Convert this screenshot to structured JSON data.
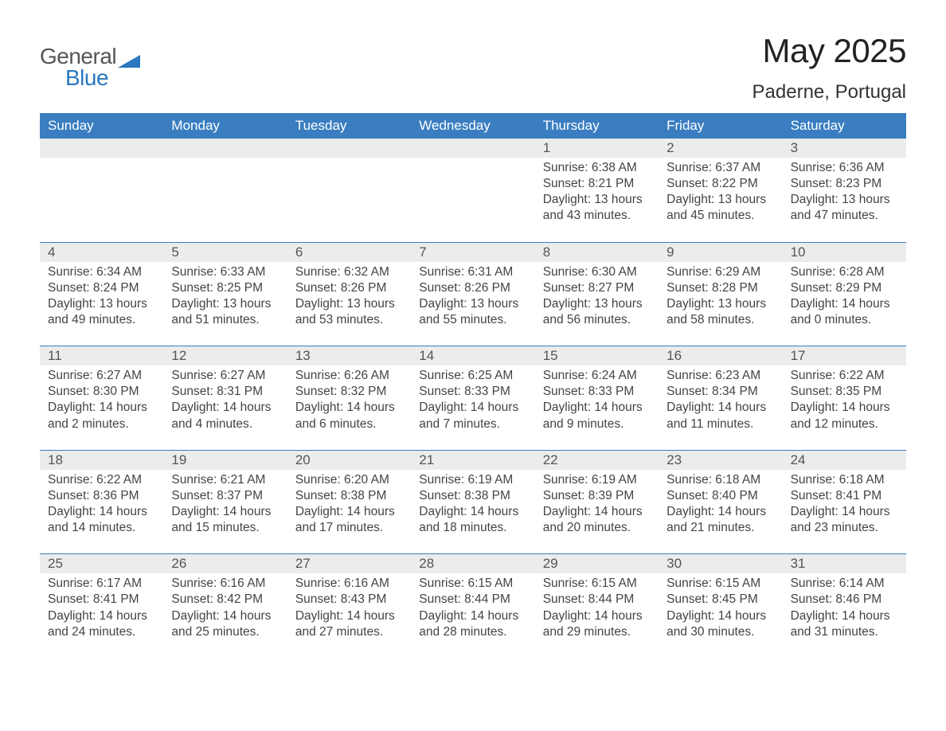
{
  "logo": {
    "general": "General",
    "blue": "Blue",
    "accent_color": "#2b77c0",
    "text_color": "#555555"
  },
  "title": "May 2025",
  "location": "Paderne, Portugal",
  "header_bg": "#3a7ec1",
  "header_fg": "#ffffff",
  "strip_bg": "#ececec",
  "border_color": "#3a7ec1",
  "text_color": "#444444",
  "columns": [
    "Sunday",
    "Monday",
    "Tuesday",
    "Wednesday",
    "Thursday",
    "Friday",
    "Saturday"
  ],
  "weeks": [
    [
      {
        "day": "",
        "lines": []
      },
      {
        "day": "",
        "lines": []
      },
      {
        "day": "",
        "lines": []
      },
      {
        "day": "",
        "lines": []
      },
      {
        "day": "1",
        "lines": [
          "Sunrise: 6:38 AM",
          "Sunset: 8:21 PM",
          "Daylight: 13 hours and 43 minutes."
        ]
      },
      {
        "day": "2",
        "lines": [
          "Sunrise: 6:37 AM",
          "Sunset: 8:22 PM",
          "Daylight: 13 hours and 45 minutes."
        ]
      },
      {
        "day": "3",
        "lines": [
          "Sunrise: 6:36 AM",
          "Sunset: 8:23 PM",
          "Daylight: 13 hours and 47 minutes."
        ]
      }
    ],
    [
      {
        "day": "4",
        "lines": [
          "Sunrise: 6:34 AM",
          "Sunset: 8:24 PM",
          "Daylight: 13 hours and 49 minutes."
        ]
      },
      {
        "day": "5",
        "lines": [
          "Sunrise: 6:33 AM",
          "Sunset: 8:25 PM",
          "Daylight: 13 hours and 51 minutes."
        ]
      },
      {
        "day": "6",
        "lines": [
          "Sunrise: 6:32 AM",
          "Sunset: 8:26 PM",
          "Daylight: 13 hours and 53 minutes."
        ]
      },
      {
        "day": "7",
        "lines": [
          "Sunrise: 6:31 AM",
          "Sunset: 8:26 PM",
          "Daylight: 13 hours and 55 minutes."
        ]
      },
      {
        "day": "8",
        "lines": [
          "Sunrise: 6:30 AM",
          "Sunset: 8:27 PM",
          "Daylight: 13 hours and 56 minutes."
        ]
      },
      {
        "day": "9",
        "lines": [
          "Sunrise: 6:29 AM",
          "Sunset: 8:28 PM",
          "Daylight: 13 hours and 58 minutes."
        ]
      },
      {
        "day": "10",
        "lines": [
          "Sunrise: 6:28 AM",
          "Sunset: 8:29 PM",
          "Daylight: 14 hours and 0 minutes."
        ]
      }
    ],
    [
      {
        "day": "11",
        "lines": [
          "Sunrise: 6:27 AM",
          "Sunset: 8:30 PM",
          "Daylight: 14 hours and 2 minutes."
        ]
      },
      {
        "day": "12",
        "lines": [
          "Sunrise: 6:27 AM",
          "Sunset: 8:31 PM",
          "Daylight: 14 hours and 4 minutes."
        ]
      },
      {
        "day": "13",
        "lines": [
          "Sunrise: 6:26 AM",
          "Sunset: 8:32 PM",
          "Daylight: 14 hours and 6 minutes."
        ]
      },
      {
        "day": "14",
        "lines": [
          "Sunrise: 6:25 AM",
          "Sunset: 8:33 PM",
          "Daylight: 14 hours and 7 minutes."
        ]
      },
      {
        "day": "15",
        "lines": [
          "Sunrise: 6:24 AM",
          "Sunset: 8:33 PM",
          "Daylight: 14 hours and 9 minutes."
        ]
      },
      {
        "day": "16",
        "lines": [
          "Sunrise: 6:23 AM",
          "Sunset: 8:34 PM",
          "Daylight: 14 hours and 11 minutes."
        ]
      },
      {
        "day": "17",
        "lines": [
          "Sunrise: 6:22 AM",
          "Sunset: 8:35 PM",
          "Daylight: 14 hours and 12 minutes."
        ]
      }
    ],
    [
      {
        "day": "18",
        "lines": [
          "Sunrise: 6:22 AM",
          "Sunset: 8:36 PM",
          "Daylight: 14 hours and 14 minutes."
        ]
      },
      {
        "day": "19",
        "lines": [
          "Sunrise: 6:21 AM",
          "Sunset: 8:37 PM",
          "Daylight: 14 hours and 15 minutes."
        ]
      },
      {
        "day": "20",
        "lines": [
          "Sunrise: 6:20 AM",
          "Sunset: 8:38 PM",
          "Daylight: 14 hours and 17 minutes."
        ]
      },
      {
        "day": "21",
        "lines": [
          "Sunrise: 6:19 AM",
          "Sunset: 8:38 PM",
          "Daylight: 14 hours and 18 minutes."
        ]
      },
      {
        "day": "22",
        "lines": [
          "Sunrise: 6:19 AM",
          "Sunset: 8:39 PM",
          "Daylight: 14 hours and 20 minutes."
        ]
      },
      {
        "day": "23",
        "lines": [
          "Sunrise: 6:18 AM",
          "Sunset: 8:40 PM",
          "Daylight: 14 hours and 21 minutes."
        ]
      },
      {
        "day": "24",
        "lines": [
          "Sunrise: 6:18 AM",
          "Sunset: 8:41 PM",
          "Daylight: 14 hours and 23 minutes."
        ]
      }
    ],
    [
      {
        "day": "25",
        "lines": [
          "Sunrise: 6:17 AM",
          "Sunset: 8:41 PM",
          "Daylight: 14 hours and 24 minutes."
        ]
      },
      {
        "day": "26",
        "lines": [
          "Sunrise: 6:16 AM",
          "Sunset: 8:42 PM",
          "Daylight: 14 hours and 25 minutes."
        ]
      },
      {
        "day": "27",
        "lines": [
          "Sunrise: 6:16 AM",
          "Sunset: 8:43 PM",
          "Daylight: 14 hours and 27 minutes."
        ]
      },
      {
        "day": "28",
        "lines": [
          "Sunrise: 6:15 AM",
          "Sunset: 8:44 PM",
          "Daylight: 14 hours and 28 minutes."
        ]
      },
      {
        "day": "29",
        "lines": [
          "Sunrise: 6:15 AM",
          "Sunset: 8:44 PM",
          "Daylight: 14 hours and 29 minutes."
        ]
      },
      {
        "day": "30",
        "lines": [
          "Sunrise: 6:15 AM",
          "Sunset: 8:45 PM",
          "Daylight: 14 hours and 30 minutes."
        ]
      },
      {
        "day": "31",
        "lines": [
          "Sunrise: 6:14 AM",
          "Sunset: 8:46 PM",
          "Daylight: 14 hours and 31 minutes."
        ]
      }
    ]
  ]
}
